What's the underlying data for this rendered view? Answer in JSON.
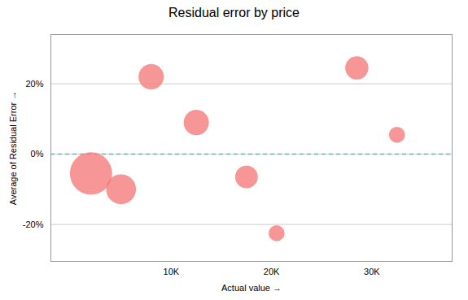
{
  "chart_data": {
    "type": "scatter",
    "title": "Residual error by price",
    "xlabel": "Actual value",
    "ylabel": "Average of Residual Error",
    "color": "#f47c7c",
    "x": [
      2000,
      5000,
      8000,
      12500,
      17500,
      20500,
      28500,
      32500
    ],
    "values": [
      -0.055,
      -0.1,
      0.22,
      0.09,
      -0.065,
      -0.225,
      0.245,
      0.055
    ],
    "sizes": [
      1400,
      700,
      500,
      500,
      400,
      200,
      420,
      200
    ],
    "xlim": [
      -2000,
      38000
    ],
    "ylim": [
      -0.305,
      0.34
    ],
    "xticks": [
      {
        "value": 10000,
        "label": "10K"
      },
      {
        "value": 20000,
        "label": "20K"
      },
      {
        "value": 30000,
        "label": "30K"
      }
    ],
    "yticks": [
      {
        "value": -0.2,
        "label": "-20%"
      },
      {
        "value": 0.0,
        "label": "0%"
      },
      {
        "value": 0.2,
        "label": "20%"
      }
    ],
    "grid": "y",
    "reference_line": {
      "y": 0,
      "color": "#4cbfb8",
      "line_style": "dashed"
    }
  }
}
